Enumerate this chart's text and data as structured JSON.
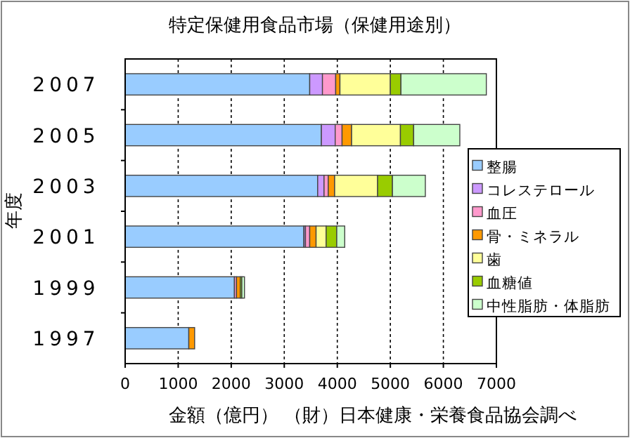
{
  "chart_data": {
    "type": "bar",
    "orientation": "horizontal",
    "stacked": true,
    "title": "特定保健用食品市場（保健用途別）",
    "xlabel": "金額（億円）",
    "ylabel": "年度",
    "annotations": [
      "（財）日本健康・栄養食品協会調べ"
    ],
    "categories": [
      "2007",
      "2005",
      "2003",
      "2001",
      "1999",
      "1997"
    ],
    "series": [
      {
        "name": "整腸",
        "color": "#99ccff",
        "values": [
          3480,
          3700,
          3630,
          3370,
          2060,
          1200
        ]
      },
      {
        "name": "コレステロール",
        "color": "#cc99ff",
        "values": [
          240,
          260,
          120,
          30,
          null,
          null
        ]
      },
      {
        "name": "血圧",
        "color": "#ff99cc",
        "values": [
          250,
          130,
          80,
          80,
          40,
          null
        ]
      },
      {
        "name": "骨・ミネラル",
        "color": "#ff9900",
        "values": [
          80,
          180,
          120,
          120,
          70,
          110
        ]
      },
      {
        "name": "歯",
        "color": "#ffff99",
        "values": [
          950,
          920,
          810,
          190,
          null,
          null
        ]
      },
      {
        "name": "血糖値",
        "color": "#99cc00",
        "values": [
          200,
          250,
          280,
          200,
          30,
          null
        ]
      },
      {
        "name": "中性脂肪・体脂肪",
        "color": "#ccffcc",
        "values": [
          1610,
          870,
          620,
          150,
          50,
          null
        ]
      }
    ],
    "xlim": [
      0,
      7000
    ],
    "xticks": [
      0,
      1000,
      2000,
      3000,
      4000,
      5000,
      6000,
      7000
    ],
    "grid": "x",
    "legend": "right"
  }
}
